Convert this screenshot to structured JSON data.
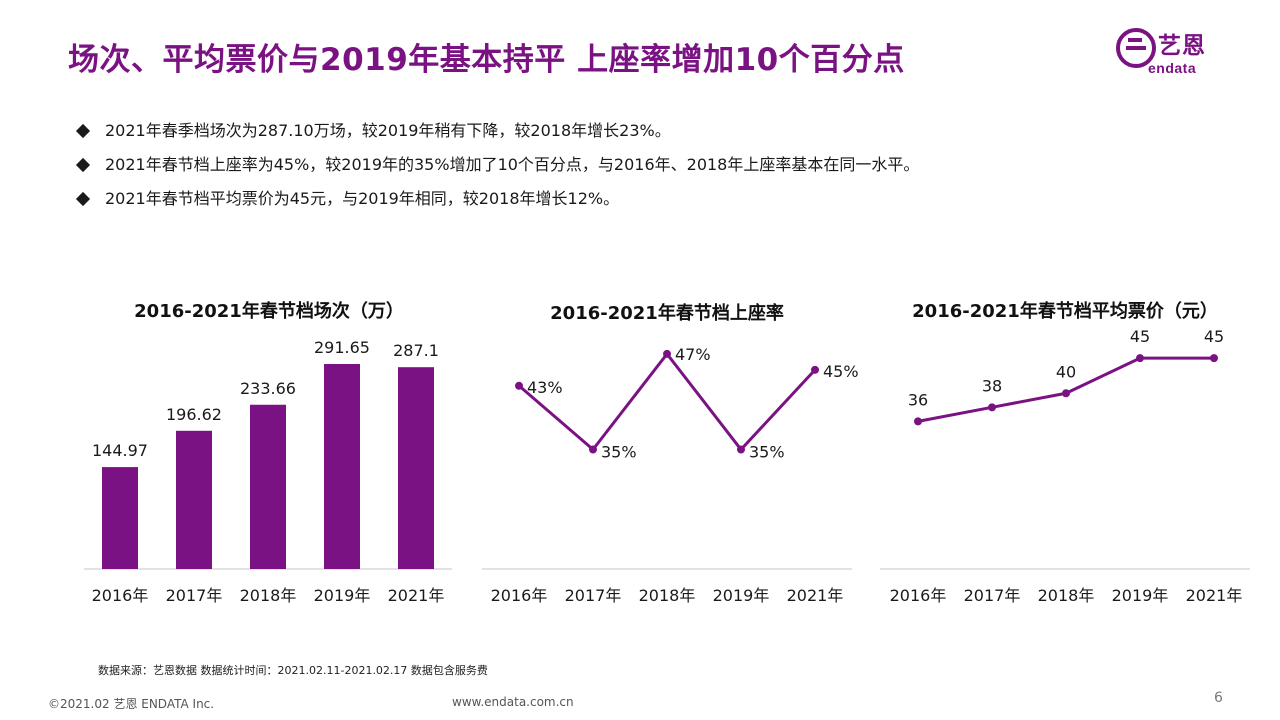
{
  "title": "场次、平均票价与2019年基本持平 上座率增加10个百分点",
  "logo": {
    "cn": "艺恩",
    "en": "endata",
    "color": "#7b1283"
  },
  "bullets": [
    "2021年春季档场次为287.10万场，较2019年稍有下降，较2018年增长23%。",
    "2021年春节档上座率为45%，较2019年的35%增加了10个百分点，与2016年、2018年上座率基本在同一水平。",
    "2021年春节档平均票价为45元，与2019年相同，较2018年增长12%。"
  ],
  "colors": {
    "accent": "#7b1283",
    "axis": "#d9d9d9"
  },
  "chart_data": [
    {
      "type": "bar",
      "title": "2016-2021年春节档场次（万）",
      "categories": [
        "2016年",
        "2017年",
        "2018年",
        "2019年",
        "2021年"
      ],
      "values": [
        144.97,
        196.62,
        233.66,
        291.65,
        287.1
      ],
      "value_labels": [
        "144.97",
        "196.62",
        "233.66",
        "291.65",
        "287.1"
      ],
      "ylim": [
        0,
        340
      ],
      "grid": false
    },
    {
      "type": "line",
      "title": "2016-2021年春节档上座率",
      "categories": [
        "2016年",
        "2017年",
        "2018年",
        "2019年",
        "2021年"
      ],
      "values": [
        43,
        35,
        47,
        35,
        45
      ],
      "value_labels": [
        "43%",
        "35%",
        "47%",
        "35%",
        "45%"
      ],
      "ylim": [
        20,
        50
      ],
      "grid": false
    },
    {
      "type": "line",
      "title": "2016-2021年春节档平均票价（元）",
      "categories": [
        "2016年",
        "2017年",
        "2018年",
        "2019年",
        "2021年"
      ],
      "values": [
        36,
        38,
        40,
        45,
        45
      ],
      "value_labels": [
        "36",
        "38",
        "40",
        "45",
        "45"
      ],
      "ylim": [
        15,
        49
      ],
      "grid": false
    }
  ],
  "source": "数据来源：艺恩数据   数据统计时间：2021.02.11-2021.02.17 数据包含服务费",
  "footer": {
    "copyright": "©2021.02 艺恩 ENDATA Inc.",
    "url": "www.endata.com.cn",
    "page": "6"
  }
}
